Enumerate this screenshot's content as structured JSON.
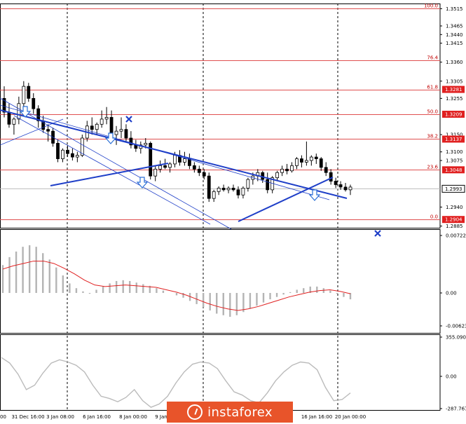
{
  "chart_data": {
    "type": "candlestick",
    "symbol_price_axis": {
      "min": 1.288,
      "max": 1.353,
      "ticks": [
        "1.3515",
        "1.3465",
        "1.3440",
        "1.3415",
        "1.3360",
        "1.3305",
        "1.3255",
        "1.3150",
        "1.3100",
        "1.3075",
        "1.2940",
        "1.2885"
      ]
    },
    "current_price": "1.2993",
    "fibonacci_levels": [
      {
        "label": "100.0",
        "price": 1.3515
      },
      {
        "label": "76.4",
        "price": 1.3366
      },
      {
        "label": "61.8",
        "price": 1.3281
      },
      {
        "label": "50.0",
        "price": 1.3209
      },
      {
        "label": "38.2",
        "price": 1.3137
      },
      {
        "label": "23.6",
        "price": 1.3048
      },
      {
        "label": "0.0",
        "price": 1.2904
      }
    ],
    "price_tags": [
      "1.3281",
      "1.3209",
      "1.3137",
      "1.3048",
      "1.2904"
    ],
    "time_labels": [
      "31 Dec 16:00",
      "3 Jan 08:00",
      "6 Jan 16:00",
      "8 Jan 00:00",
      "9 Jan",
      "16 Jan 16:00",
      "20 Jan 00:00"
    ],
    "candles": [
      [
        1.3255,
        1.329,
        1.32,
        1.3215
      ],
      [
        1.3215,
        1.324,
        1.317,
        1.318
      ],
      [
        1.318,
        1.32,
        1.315,
        1.3195
      ],
      [
        1.3195,
        1.326,
        1.318,
        1.324
      ],
      [
        1.324,
        1.3305,
        1.323,
        1.329
      ],
      [
        1.329,
        1.33,
        1.3245,
        1.3255
      ],
      [
        1.3255,
        1.327,
        1.321,
        1.3225
      ],
      [
        1.3225,
        1.3235,
        1.317,
        1.319
      ],
      [
        1.319,
        1.3205,
        1.3155,
        1.3165
      ],
      [
        1.3165,
        1.318,
        1.313,
        1.316
      ],
      [
        1.316,
        1.317,
        1.3115,
        1.3125
      ],
      [
        1.3125,
        1.3135,
        1.307,
        1.308
      ],
      [
        1.308,
        1.311,
        1.307,
        1.3105
      ],
      [
        1.3105,
        1.312,
        1.3085,
        1.3095
      ],
      [
        1.3095,
        1.311,
        1.3075,
        1.3085
      ],
      [
        1.3085,
        1.31,
        1.307,
        1.309
      ],
      [
        1.309,
        1.315,
        1.3085,
        1.314
      ],
      [
        1.314,
        1.319,
        1.313,
        1.3175
      ],
      [
        1.3175,
        1.32,
        1.315,
        1.3165
      ],
      [
        1.3165,
        1.3185,
        1.315,
        1.318
      ],
      [
        1.318,
        1.322,
        1.317,
        1.3195
      ],
      [
        1.3195,
        1.323,
        1.318,
        1.32
      ],
      [
        1.32,
        1.322,
        1.314,
        1.315
      ],
      [
        1.315,
        1.3175,
        1.312,
        1.316
      ],
      [
        1.316,
        1.32,
        1.314,
        1.3165
      ],
      [
        1.3165,
        1.318,
        1.313,
        1.314
      ],
      [
        1.314,
        1.316,
        1.311,
        1.312
      ],
      [
        1.312,
        1.3135,
        1.31,
        1.311
      ],
      [
        1.311,
        1.313,
        1.3095,
        1.312
      ],
      [
        1.312,
        1.314,
        1.311,
        1.3125
      ],
      [
        1.3125,
        1.313,
        1.302,
        1.303
      ],
      [
        1.303,
        1.306,
        1.3015,
        1.305
      ],
      [
        1.305,
        1.3075,
        1.304,
        1.306
      ],
      [
        1.306,
        1.308,
        1.305,
        1.3055
      ],
      [
        1.3055,
        1.307,
        1.304,
        1.3065
      ],
      [
        1.3065,
        1.31,
        1.3055,
        1.309
      ],
      [
        1.309,
        1.3105,
        1.306,
        1.307
      ],
      [
        1.307,
        1.31,
        1.306,
        1.308
      ],
      [
        1.308,
        1.3095,
        1.305,
        1.306
      ],
      [
        1.306,
        1.307,
        1.304,
        1.305
      ],
      [
        1.305,
        1.306,
        1.303,
        1.304
      ],
      [
        1.304,
        1.305,
        1.302,
        1.303
      ],
      [
        1.303,
        1.304,
        1.2955,
        1.2965
      ],
      [
        1.2965,
        1.299,
        1.2955,
        1.2985
      ],
      [
        1.2985,
        1.3,
        1.2975,
        1.2995
      ],
      [
        1.2995,
        1.3005,
        1.2985,
        1.299
      ],
      [
        1.299,
        1.3,
        1.298,
        1.2995
      ],
      [
        1.2995,
        1.3005,
        1.2985,
        1.299
      ],
      [
        1.299,
        1.3,
        1.2965,
        1.2975
      ],
      [
        1.2975,
        1.3,
        1.2965,
        1.2995
      ],
      [
        1.2995,
        1.3025,
        1.2985,
        1.302
      ],
      [
        1.302,
        1.304,
        1.3005,
        1.303
      ],
      [
        1.303,
        1.305,
        1.3015,
        1.304
      ],
      [
        1.304,
        1.3045,
        1.301,
        1.302
      ],
      [
        1.302,
        1.304,
        1.298,
        1.299
      ],
      [
        1.299,
        1.303,
        1.298,
        1.3025
      ],
      [
        1.3025,
        1.3045,
        1.3015,
        1.304
      ],
      [
        1.304,
        1.306,
        1.303,
        1.305
      ],
      [
        1.305,
        1.3065,
        1.3035,
        1.3045
      ],
      [
        1.3045,
        1.307,
        1.304,
        1.306
      ],
      [
        1.306,
        1.3085,
        1.305,
        1.308
      ],
      [
        1.308,
        1.309,
        1.3055,
        1.307
      ],
      [
        1.307,
        1.313,
        1.306,
        1.3075
      ],
      [
        1.3075,
        1.309,
        1.306,
        1.3085
      ],
      [
        1.3085,
        1.3095,
        1.3065,
        1.308
      ],
      [
        1.308,
        1.3085,
        1.3045,
        1.3055
      ],
      [
        1.3055,
        1.307,
        1.303,
        1.304
      ],
      [
        1.304,
        1.305,
        1.3005,
        1.3015
      ],
      [
        1.3015,
        1.3025,
        1.2995,
        1.3005
      ],
      [
        1.3005,
        1.3015,
        1.299,
        1.2998
      ],
      [
        1.2998,
        1.301,
        1.2985,
        1.299
      ],
      [
        1.299,
        1.3005,
        1.2975,
        1.2998
      ]
    ],
    "macd_axis": {
      "ticks": [
        "0.00722",
        "0.00",
        "-0.00623"
      ]
    },
    "macd_histogram": [
      0.0035,
      0.0045,
      0.0052,
      0.0058,
      0.006,
      0.0058,
      0.005,
      0.0042,
      0.0032,
      0.0022,
      0.0012,
      0.0006,
      0.0002,
      -0.0001,
      0.0004,
      0.0008,
      0.0012,
      0.0015,
      0.0016,
      0.0015,
      0.0013,
      0.0011,
      0.0009,
      0.0006,
      0.0003,
      0.0,
      -0.0003,
      -0.0006,
      -0.001,
      -0.0014,
      -0.0018,
      -0.0022,
      -0.0026,
      -0.0028,
      -0.003,
      -0.0028,
      -0.0024,
      -0.002,
      -0.0016,
      -0.0012,
      -0.0008,
      -0.0005,
      -0.0002,
      0.0001,
      0.0004,
      0.0006,
      0.0008,
      0.0008,
      0.0006,
      0.0003,
      -0.0001,
      -0.0005,
      -0.0008
    ],
    "macd_signal": [
      0.003,
      0.0034,
      0.0037,
      0.004,
      0.004,
      0.0037,
      0.0031,
      0.0024,
      0.0016,
      0.001,
      0.0008,
      0.0009,
      0.001,
      0.0009,
      0.0008,
      0.0007,
      0.0004,
      0.0001,
      -0.0003,
      -0.0008,
      -0.0013,
      -0.0017,
      -0.002,
      -0.0022,
      -0.002,
      -0.0017,
      -0.0013,
      -0.0009,
      -0.0005,
      -0.0002,
      0.0001,
      0.0003,
      0.0004,
      0.0002,
      -0.0001
    ],
    "osc_axis": {
      "ticks": [
        "355.0903",
        "0.00",
        "-287.767"
      ]
    },
    "osc_values": [
      170,
      120,
      20,
      -120,
      -80,
      30,
      120,
      150,
      130,
      100,
      40,
      -80,
      -180,
      -200,
      -230,
      -190,
      -120,
      -220,
      -280,
      -250,
      -180,
      -60,
      40,
      110,
      130,
      120,
      70,
      -40,
      -140,
      -170,
      -220,
      -240,
      -150,
      -40,
      40,
      100,
      130,
      120,
      60,
      -100,
      -220,
      -210,
      -150
    ]
  },
  "watermark": {
    "text": "instaforex"
  },
  "colors": {
    "fib": "#e05050",
    "trend": "#1f3fc8",
    "macd_signal": "#e02020",
    "histogram": "#b4b4b4",
    "osc": "#bbbbbb",
    "tag": "#e02020"
  }
}
